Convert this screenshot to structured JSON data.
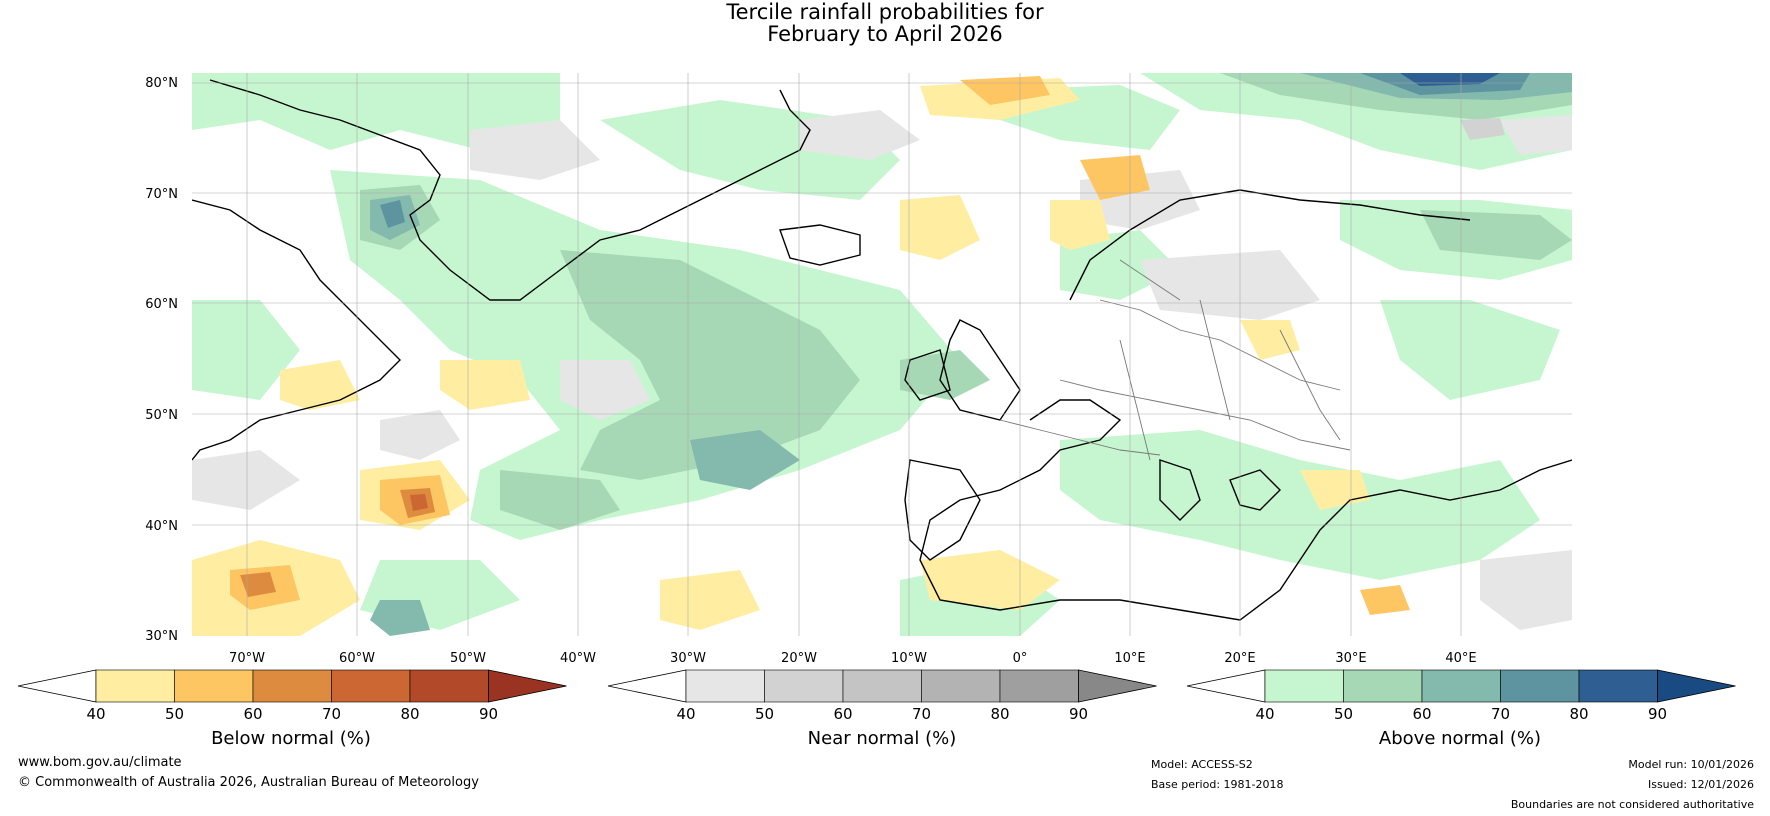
{
  "title": {
    "line1": "Tercile rainfall probabilities for",
    "line2": "February to April 2026"
  },
  "map": {
    "lat_labels": [
      "80°N",
      "70°N",
      "60°N",
      "50°N",
      "40°N",
      "30°N"
    ],
    "lon_labels": [
      "70°W",
      "60°W",
      "50°W",
      "40°W",
      "30°W",
      "20°W",
      "10°W",
      "0°",
      "10°E",
      "20°E",
      "30°E",
      "40°E"
    ]
  },
  "colorbars": [
    {
      "name": "Below normal (%)",
      "ticks": [
        "40",
        "50",
        "60",
        "70",
        "80",
        "90"
      ],
      "colors": [
        "#ffeea1",
        "#fdc662",
        "#dd8b3e",
        "#cc6632",
        "#b24a2a",
        "#9a3321"
      ]
    },
    {
      "name": "Near normal (%)",
      "ticks": [
        "40",
        "50",
        "60",
        "70",
        "80",
        "90"
      ],
      "colors": [
        "#e6e6e6",
        "#d2d2d2",
        "#c4c4c4",
        "#b3b3b3",
        "#9f9f9f",
        "#888888"
      ]
    },
    {
      "name": "Above normal (%)",
      "ticks": [
        "40",
        "50",
        "60",
        "70",
        "80",
        "90"
      ],
      "colors": [
        "#c6f6cf",
        "#a6d8b6",
        "#84b9ad",
        "#5e93a0",
        "#2f5f92",
        "#1a4a82"
      ]
    }
  ],
  "footer": {
    "website": "www.bom.gov.au/climate",
    "copyright": "© Commonwealth of Australia 2026, Australian Bureau of Meteorology",
    "model": "Model: ACCESS-S2",
    "base_period": "Base period: 1981-2018",
    "model_run": "Model run: 10/01/2026",
    "issued": "Issued: 12/01/2026",
    "disclaimer": "Boundaries are not considered authoritative"
  }
}
